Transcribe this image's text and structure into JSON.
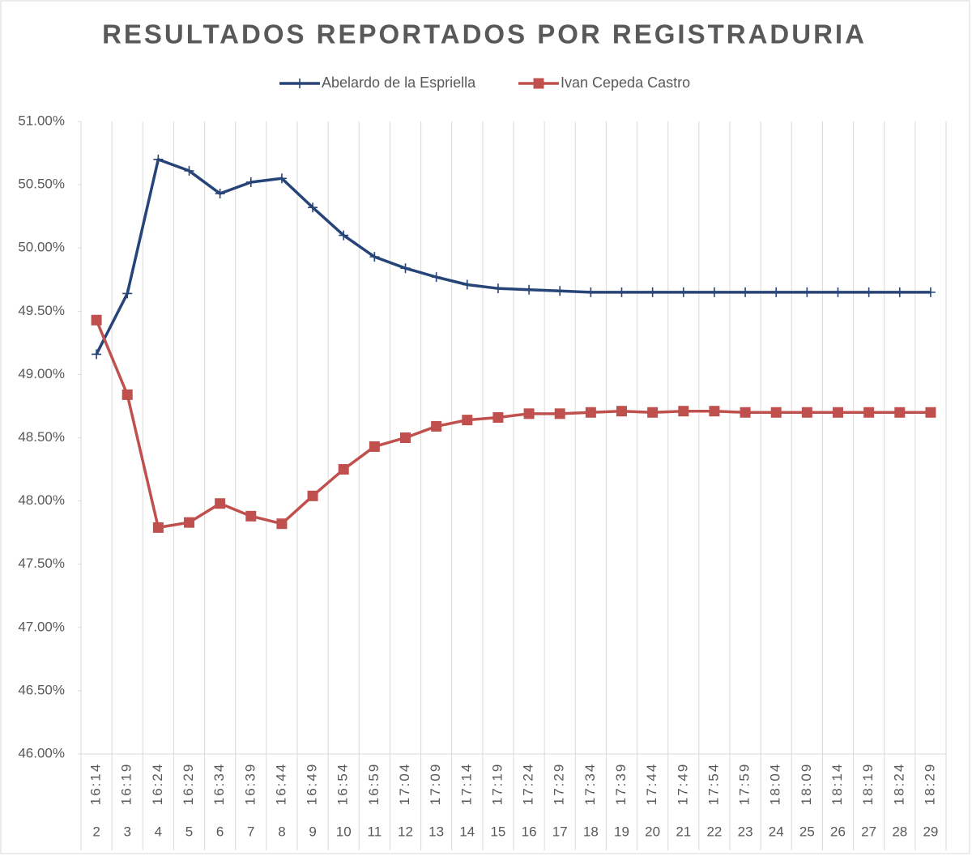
{
  "chart_data": {
    "type": "line",
    "title": "RESULTADOS REPORTADOS POR REGISTRADURIA",
    "categories": [
      "16:14",
      "16:19",
      "16:24",
      "16:29",
      "16:34",
      "16:39",
      "16:44",
      "16:49",
      "16:54",
      "16:59",
      "17:04",
      "17:09",
      "17:14",
      "17:19",
      "17:24",
      "17:29",
      "17:34",
      "17:39",
      "17:44",
      "17:49",
      "17:54",
      "17:59",
      "18:04",
      "18:09",
      "18:14",
      "18:19",
      "18:24",
      "18:29"
    ],
    "category_numbers": [
      2,
      3,
      4,
      5,
      6,
      7,
      8,
      9,
      10,
      11,
      12,
      13,
      14,
      15,
      16,
      17,
      18,
      19,
      20,
      21,
      22,
      23,
      24,
      25,
      26,
      27,
      28,
      29
    ],
    "series": [
      {
        "name": "Abelardo de la Espriella",
        "color": "#264478",
        "marker": "plus",
        "values": [
          49.16,
          49.64,
          50.7,
          50.61,
          50.43,
          50.52,
          50.55,
          50.32,
          50.1,
          49.93,
          49.84,
          49.77,
          49.71,
          49.68,
          49.67,
          49.66,
          49.65,
          49.65,
          49.65,
          49.65,
          49.65,
          49.65,
          49.65,
          49.65,
          49.65,
          49.65,
          49.65,
          49.65
        ]
      },
      {
        "name": "Ivan Cepeda Castro",
        "color": "#c0504d",
        "marker": "square",
        "values": [
          49.43,
          48.84,
          47.79,
          47.83,
          47.98,
          47.88,
          47.82,
          48.04,
          48.25,
          48.43,
          48.5,
          48.59,
          48.64,
          48.66,
          48.69,
          48.69,
          48.7,
          48.71,
          48.7,
          48.71,
          48.71,
          48.7,
          48.7,
          48.7,
          48.7,
          48.7,
          48.7,
          48.7
        ]
      }
    ],
    "ylim": [
      46,
      51
    ],
    "yticks": [
      {
        "value": 46,
        "label": "46.00%"
      },
      {
        "value": 46.5,
        "label": "46.50%"
      },
      {
        "value": 47,
        "label": "47.00%"
      },
      {
        "value": 47.5,
        "label": "47.50%"
      },
      {
        "value": 48,
        "label": "48.00%"
      },
      {
        "value": 48.5,
        "label": "48.50%"
      },
      {
        "value": 49,
        "label": "49.00%"
      },
      {
        "value": 49.5,
        "label": "49.50%"
      },
      {
        "value": 50,
        "label": "50.00%"
      },
      {
        "value": 50.5,
        "label": "50.50%"
      },
      {
        "value": 51,
        "label": "51.00%"
      }
    ],
    "legend": "top"
  }
}
